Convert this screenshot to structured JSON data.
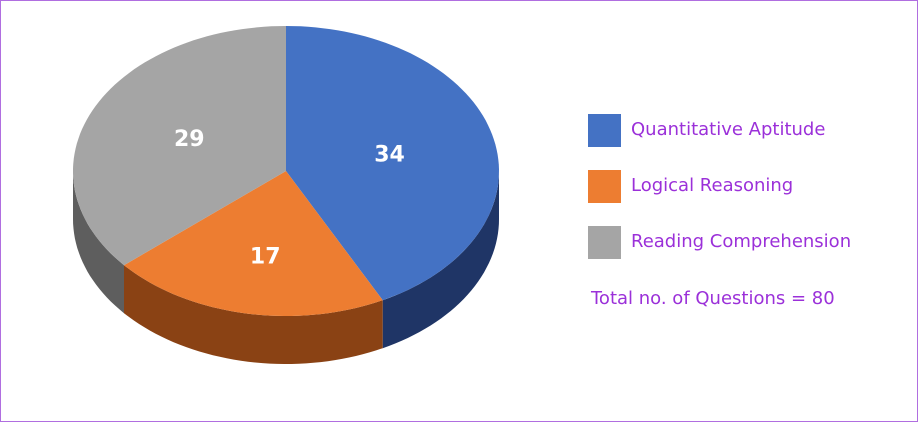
{
  "chart_data": {
    "type": "pie",
    "categories": [
      "Quantitative Aptitude",
      "Logical Reasoning",
      "Reading Comprehension"
    ],
    "values": [
      34,
      17,
      29
    ],
    "colors": [
      "#4472c4",
      "#ed7d31",
      "#a5a5a5"
    ],
    "side_colors": [
      "#1f3566",
      "#8a4214",
      "#5e5e5e"
    ],
    "annotation": "Total no. of Questions = 80"
  }
}
